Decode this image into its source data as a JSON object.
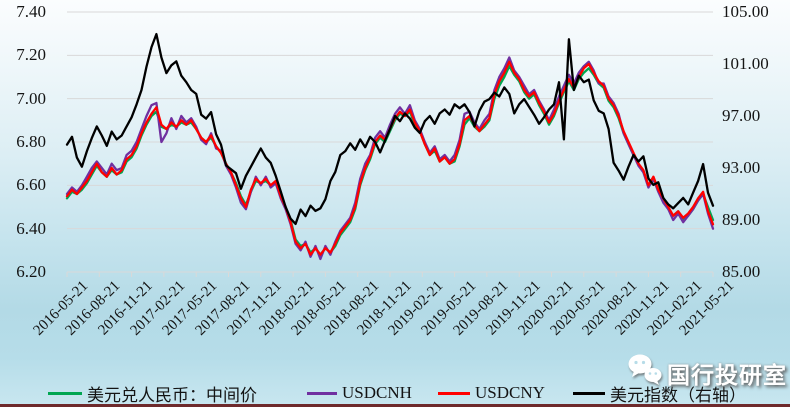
{
  "watermark": {
    "text": "国行投研室",
    "icon": "wechat-icon"
  },
  "colors": {
    "grid": "#d9d9d9",
    "axis_text": "#141414",
    "bottom_bar": "#6e2a2c"
  },
  "chart_data": {
    "type": "line",
    "title": "",
    "xlabel": "",
    "ylabel_left": "",
    "ylabel_right": "",
    "grid": true,
    "legend_position": "bottom",
    "start_date": "2016-05-21",
    "end_date": "2021-05-21",
    "sample_interval_weeks": 2,
    "x_tick_labels": [
      "2016-05-21",
      "2016-08-21",
      "2016-11-21",
      "2017-02-21",
      "2017-05-21",
      "2017-08-21",
      "2017-11-21",
      "2018-02-21",
      "2018-05-21",
      "2018-08-21",
      "2018-11-21",
      "2019-02-21",
      "2019-05-21",
      "2019-08-21",
      "2019-11-21",
      "2020-02-21",
      "2020-05-21",
      "2020-08-21",
      "2020-11-21",
      "2021-02-21",
      "2021-05-21"
    ],
    "left_axis": {
      "min": 6.2,
      "max": 7.4,
      "ticks": [
        "7.40",
        "7.20",
        "7.00",
        "6.80",
        "6.60",
        "6.40",
        "6.20"
      ]
    },
    "right_axis": {
      "min": 85.0,
      "max": 105.0,
      "ticks": [
        "105.00",
        "101.00",
        "97.00",
        "93.00",
        "89.00",
        "85.00"
      ]
    },
    "series": [
      {
        "id": "midpoint",
        "name": "美元兑人民币：中间价",
        "color": "#00a651",
        "axis": "left",
        "values": [
          6.54,
          6.57,
          6.56,
          6.58,
          6.61,
          6.65,
          6.69,
          6.66,
          6.64,
          6.67,
          6.65,
          6.66,
          6.71,
          6.73,
          6.77,
          6.83,
          6.88,
          6.92,
          6.94,
          6.87,
          6.86,
          6.88,
          6.87,
          6.89,
          6.88,
          6.89,
          6.86,
          6.82,
          6.8,
          6.82,
          6.78,
          6.75,
          6.7,
          6.66,
          6.61,
          6.55,
          6.51,
          6.57,
          6.62,
          6.61,
          6.62,
          6.6,
          6.61,
          6.55,
          6.5,
          6.44,
          6.35,
          6.32,
          6.33,
          6.29,
          6.31,
          6.28,
          6.31,
          6.29,
          6.32,
          6.37,
          6.4,
          6.43,
          6.49,
          6.6,
          6.67,
          6.72,
          6.79,
          6.82,
          6.8,
          6.85,
          6.9,
          6.93,
          6.92,
          6.94,
          6.88,
          6.85,
          6.79,
          6.74,
          6.76,
          6.71,
          6.73,
          6.7,
          6.71,
          6.78,
          6.88,
          6.91,
          6.87,
          6.85,
          6.87,
          6.9,
          7.0,
          7.06,
          7.1,
          7.15,
          7.11,
          7.08,
          7.03,
          7.0,
          7.02,
          6.97,
          6.93,
          6.88,
          6.92,
          6.98,
          7.03,
          7.08,
          7.04,
          7.09,
          7.12,
          7.14,
          7.11,
          7.07,
          7.05,
          6.99,
          6.96,
          6.91,
          6.84,
          6.79,
          6.74,
          6.7,
          6.66,
          6.6,
          6.63,
          6.58,
          6.53,
          6.49,
          6.46,
          6.48,
          6.44,
          6.46,
          6.49,
          6.53,
          6.56,
          6.5,
          6.44
        ]
      },
      {
        "id": "usdcnh",
        "name": "USDCNH",
        "color": "#7030a0",
        "axis": "left",
        "values": [
          6.56,
          6.59,
          6.57,
          6.6,
          6.64,
          6.68,
          6.71,
          6.68,
          6.65,
          6.7,
          6.67,
          6.68,
          6.74,
          6.76,
          6.8,
          6.86,
          6.92,
          6.97,
          6.98,
          6.8,
          6.84,
          6.91,
          6.86,
          6.92,
          6.89,
          6.91,
          6.87,
          6.81,
          6.79,
          6.84,
          6.77,
          6.76,
          6.69,
          6.65,
          6.59,
          6.52,
          6.49,
          6.57,
          6.64,
          6.6,
          6.64,
          6.59,
          6.61,
          6.54,
          6.49,
          6.42,
          6.33,
          6.3,
          6.34,
          6.27,
          6.32,
          6.26,
          6.32,
          6.28,
          6.34,
          6.39,
          6.42,
          6.45,
          6.52,
          6.63,
          6.7,
          6.74,
          6.82,
          6.85,
          6.82,
          6.88,
          6.93,
          6.96,
          6.93,
          6.97,
          6.9,
          6.86,
          6.8,
          6.75,
          6.78,
          6.72,
          6.74,
          6.71,
          6.74,
          6.81,
          6.93,
          6.94,
          6.89,
          6.86,
          6.9,
          6.93,
          7.04,
          7.1,
          7.14,
          7.19,
          7.13,
          7.1,
          7.06,
          7.02,
          7.04,
          6.99,
          6.95,
          6.9,
          6.95,
          7.01,
          7.06,
          7.11,
          7.07,
          7.12,
          7.15,
          7.17,
          7.13,
          7.07,
          7.07,
          7.01,
          6.98,
          6.93,
          6.84,
          6.79,
          6.74,
          6.69,
          6.66,
          6.59,
          6.63,
          6.57,
          6.52,
          6.49,
          6.44,
          6.47,
          6.43,
          6.46,
          6.49,
          6.53,
          6.56,
          6.47,
          6.4
        ]
      },
      {
        "id": "usdcny",
        "name": "USDCNY",
        "color": "#ff0000",
        "axis": "left",
        "values": [
          6.55,
          6.58,
          6.56,
          6.59,
          6.62,
          6.66,
          6.7,
          6.66,
          6.64,
          6.68,
          6.65,
          6.67,
          6.72,
          6.74,
          6.78,
          6.84,
          6.89,
          6.93,
          6.96,
          6.88,
          6.86,
          6.89,
          6.87,
          6.9,
          6.88,
          6.9,
          6.86,
          6.82,
          6.8,
          6.83,
          6.78,
          6.75,
          6.7,
          6.66,
          6.6,
          6.54,
          6.5,
          6.58,
          6.63,
          6.61,
          6.63,
          6.6,
          6.62,
          6.55,
          6.5,
          6.43,
          6.34,
          6.31,
          6.33,
          6.28,
          6.31,
          6.28,
          6.31,
          6.29,
          6.33,
          6.38,
          6.41,
          6.44,
          6.5,
          6.61,
          6.68,
          6.73,
          6.8,
          6.83,
          6.81,
          6.86,
          6.91,
          6.94,
          6.92,
          6.95,
          6.89,
          6.85,
          6.79,
          6.74,
          6.77,
          6.71,
          6.73,
          6.7,
          6.72,
          6.79,
          6.9,
          6.92,
          6.88,
          6.85,
          6.88,
          6.91,
          7.02,
          7.08,
          7.12,
          7.17,
          7.12,
          7.09,
          7.04,
          7.01,
          7.03,
          6.98,
          6.94,
          6.89,
          6.93,
          6.99,
          7.04,
          7.09,
          7.05,
          7.1,
          7.14,
          7.16,
          7.12,
          7.08,
          7.06,
          7.0,
          6.97,
          6.92,
          6.85,
          6.8,
          6.75,
          6.7,
          6.67,
          6.6,
          6.64,
          6.58,
          6.54,
          6.5,
          6.46,
          6.48,
          6.45,
          6.47,
          6.5,
          6.54,
          6.57,
          6.48,
          6.42
        ]
      },
      {
        "id": "dxy",
        "name": "美元指数（右轴）",
        "color": "#000000",
        "axis": "right",
        "values": [
          94.8,
          95.4,
          93.8,
          93.1,
          94.3,
          95.3,
          96.2,
          95.5,
          94.7,
          95.8,
          95.2,
          95.5,
          96.2,
          96.9,
          97.9,
          99.0,
          100.8,
          102.3,
          103.3,
          101.5,
          100.3,
          100.9,
          101.2,
          100.1,
          99.6,
          99.0,
          98.7,
          97.1,
          96.8,
          97.3,
          95.6,
          94.8,
          93.2,
          92.9,
          92.6,
          91.4,
          92.4,
          93.1,
          93.8,
          94.5,
          93.8,
          93.4,
          92.4,
          91.2,
          90.0,
          89.1,
          88.7,
          89.8,
          89.3,
          90.1,
          89.7,
          89.9,
          90.6,
          92.0,
          92.7,
          94.0,
          94.3,
          94.9,
          94.4,
          95.2,
          94.6,
          95.4,
          95.0,
          94.2,
          95.1,
          96.0,
          97.0,
          96.6,
          97.2,
          96.8,
          96.1,
          95.7,
          96.6,
          97.0,
          96.4,
          97.2,
          97.5,
          97.1,
          97.9,
          97.6,
          97.9,
          97.3,
          96.2,
          97.4,
          98.1,
          98.3,
          98.8,
          98.5,
          99.2,
          98.7,
          97.2,
          97.9,
          98.3,
          97.7,
          97.1,
          96.4,
          96.9,
          97.5,
          97.9,
          99.6,
          95.2,
          102.9,
          99.0,
          100.1,
          99.6,
          99.8,
          98.2,
          97.4,
          97.2,
          96.0,
          93.4,
          92.8,
          92.1,
          93.1,
          94.0,
          93.5,
          93.9,
          92.2,
          91.7,
          91.9,
          90.7,
          90.2,
          89.9,
          90.3,
          90.7,
          90.2,
          91.1,
          92.0,
          93.3,
          91.1,
          90.1
        ]
      }
    ]
  }
}
